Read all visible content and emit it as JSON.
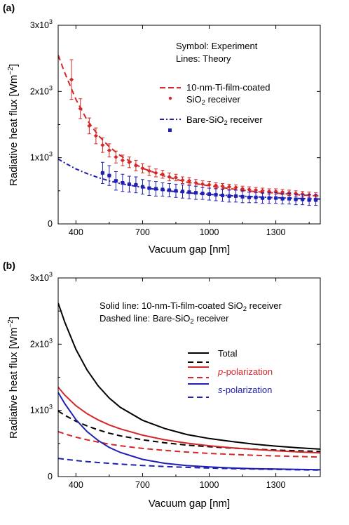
{
  "chart_data": [
    {
      "type": "line",
      "panel_label": "(a)",
      "xlabel": "Vacuum gap [nm]",
      "ylabel": "Radiative heat flux [Wm",
      "ylabel_sup": "−2",
      "ylabel_end": "]",
      "xlim": [
        320,
        1500
      ],
      "ylim": [
        0,
        3000
      ],
      "xticks": [
        400,
        700,
        1000,
        1300
      ],
      "yticks": [
        {
          "value": 0,
          "base": "0",
          "exp": ""
        },
        {
          "value": 1000,
          "base": "1x10",
          "exp": "3"
        },
        {
          "value": 2000,
          "base": "2x10",
          "exp": "3"
        },
        {
          "value": 3000,
          "base": "3x10",
          "exp": "3"
        }
      ],
      "notes": [
        "Symbol: Experiment",
        "Lines: Theory"
      ],
      "legend": [
        {
          "label_line1": "10-nm-Ti-film-coated",
          "label_line2_pre": "SiO",
          "label_line2_sub": "2",
          "label_line2_post": " receiver"
        },
        {
          "label_line1": "Bare-SiO",
          "label_line1_sub": "2",
          "label_line1_post": " receiver"
        }
      ],
      "colors": {
        "ti": "#d62728",
        "bare": "#1f1fb4"
      },
      "theory": [
        {
          "name": "10-nm-Ti-film-coated SiO2 receiver",
          "style": "dashed",
          "color": "#d62728",
          "x": [
            320,
            350,
            400,
            450,
            500,
            550,
            600,
            700,
            800,
            900,
            1000,
            1100,
            1200,
            1300,
            1400,
            1500
          ],
          "y": [
            2550,
            2280,
            1880,
            1570,
            1340,
            1165,
            1030,
            840,
            720,
            630,
            575,
            530,
            490,
            465,
            440,
            420
          ]
        },
        {
          "name": "Bare-SiO2 receiver",
          "style": "dashdot",
          "color": "#1f1fb4",
          "x": [
            320,
            350,
            400,
            450,
            500,
            550,
            600,
            700,
            800,
            900,
            1000,
            1100,
            1200,
            1300,
            1400,
            1500
          ],
          "y": [
            980,
            920,
            830,
            760,
            700,
            650,
            610,
            550,
            505,
            470,
            445,
            425,
            410,
            395,
            385,
            375
          ]
        }
      ],
      "experiment": [
        {
          "name": "10-nm-Ti-film-coated SiO2 receiver",
          "marker": "circle",
          "color": "#d62728",
          "x": [
            380,
            420,
            460,
            490,
            520,
            550,
            580,
            610,
            640,
            670,
            700,
            730,
            760,
            790,
            820,
            850,
            880,
            910,
            940,
            970,
            1000,
            1030,
            1060,
            1090,
            1120,
            1150,
            1180,
            1210,
            1240,
            1270,
            1300,
            1330,
            1360,
            1390,
            1420,
            1450,
            1480
          ],
          "y": [
            2180,
            1740,
            1480,
            1330,
            1190,
            1110,
            1010,
            960,
            930,
            880,
            840,
            800,
            770,
            750,
            710,
            700,
            660,
            650,
            620,
            600,
            590,
            580,
            570,
            560,
            550,
            530,
            520,
            510,
            500,
            490,
            490,
            480,
            470,
            460,
            450,
            440,
            430
          ],
          "err": [
            300,
            150,
            120,
            120,
            110,
            100,
            90,
            80,
            80,
            80,
            70,
            70,
            60,
            60,
            60,
            50,
            50,
            50,
            50,
            50,
            50,
            40,
            40,
            40,
            40,
            40,
            40,
            40,
            40,
            40,
            40,
            40,
            40,
            40,
            40,
            40,
            40
          ]
        },
        {
          "name": "Bare-SiO2 receiver",
          "marker": "square",
          "color": "#1f1fb4",
          "x": [
            520,
            550,
            580,
            610,
            640,
            670,
            700,
            730,
            760,
            790,
            820,
            850,
            880,
            910,
            940,
            970,
            1000,
            1030,
            1060,
            1090,
            1120,
            1150,
            1180,
            1210,
            1240,
            1270,
            1300,
            1330,
            1360,
            1390,
            1420,
            1450,
            1480
          ],
          "y": [
            770,
            730,
            650,
            620,
            600,
            590,
            560,
            540,
            530,
            520,
            510,
            500,
            490,
            480,
            470,
            460,
            450,
            440,
            430,
            420,
            420,
            410,
            400,
            400,
            390,
            390,
            390,
            380,
            380,
            370,
            370,
            360,
            360
          ],
          "err": [
            160,
            150,
            140,
            130,
            120,
            120,
            110,
            110,
            110,
            100,
            100,
            100,
            100,
            100,
            100,
            90,
            90,
            90,
            90,
            90,
            90,
            90,
            80,
            80,
            80,
            80,
            80,
            80,
            80,
            80,
            80,
            80,
            80
          ]
        }
      ]
    },
    {
      "type": "line",
      "panel_label": "(b)",
      "xlabel": "Vacuum gap [nm]",
      "ylabel": "Radiative heat flux [Wm",
      "ylabel_sup": "−2",
      "ylabel_end": "]",
      "xlim": [
        320,
        1500
      ],
      "ylim": [
        0,
        3000
      ],
      "xticks": [
        400,
        700,
        1000,
        1300
      ],
      "yticks": [
        {
          "value": 0,
          "base": "0",
          "exp": ""
        },
        {
          "value": 1000,
          "base": "1x10",
          "exp": "3"
        },
        {
          "value": 2000,
          "base": "2x10",
          "exp": "3"
        },
        {
          "value": 3000,
          "base": "3x10",
          "exp": "3"
        }
      ],
      "notes": [
        {
          "pre": "Solid line: 10-nm-Ti-film-coated SiO",
          "sub": "2",
          "post": " receiver"
        },
        {
          "pre": "Dashed line: Bare-SiO",
          "sub": "2",
          "post": " receiver"
        }
      ],
      "legend": [
        {
          "label": "Total",
          "color": "#000000",
          "italic_pre": ""
        },
        {
          "label": "-polarization",
          "color": "#d62728",
          "italic_pre": "p"
        },
        {
          "label": "-polarization",
          "color": "#1f1fb4",
          "italic_pre": "s"
        }
      ],
      "series": [
        {
          "name": "Total (Ti)",
          "style": "solid",
          "color": "#000000",
          "x": [
            320,
            350,
            400,
            450,
            500,
            550,
            600,
            700,
            800,
            900,
            1000,
            1100,
            1200,
            1300,
            1400,
            1500
          ],
          "y": [
            2620,
            2330,
            1920,
            1610,
            1370,
            1185,
            1045,
            850,
            725,
            635,
            575,
            530,
            490,
            460,
            435,
            415
          ]
        },
        {
          "name": "Total (Bare)",
          "style": "dashed",
          "color": "#000000",
          "x": [
            320,
            350,
            400,
            450,
            500,
            550,
            600,
            700,
            800,
            900,
            1000,
            1100,
            1200,
            1300,
            1400,
            1500
          ],
          "y": [
            990,
            925,
            835,
            765,
            705,
            655,
            615,
            555,
            510,
            475,
            450,
            430,
            415,
            400,
            390,
            380
          ]
        },
        {
          "name": "p-polarization (Ti)",
          "style": "solid",
          "color": "#d62728",
          "x": [
            320,
            350,
            400,
            450,
            500,
            550,
            600,
            700,
            800,
            900,
            1000,
            1100,
            1200,
            1300,
            1400,
            1500
          ],
          "y": [
            1350,
            1230,
            1070,
            950,
            855,
            780,
            720,
            625,
            555,
            505,
            465,
            435,
            410,
            390,
            372,
            358
          ]
        },
        {
          "name": "p-polarization (Bare)",
          "style": "dashed",
          "color": "#d62728",
          "x": [
            320,
            350,
            400,
            450,
            500,
            550,
            600,
            700,
            800,
            900,
            1000,
            1100,
            1200,
            1300,
            1400,
            1500
          ],
          "y": [
            680,
            645,
            595,
            555,
            520,
            490,
            465,
            425,
            395,
            370,
            350,
            335,
            322,
            312,
            303,
            295
          ]
        },
        {
          "name": "s-polarization (Ti)",
          "style": "solid",
          "color": "#1f1fb4",
          "x": [
            320,
            350,
            400,
            450,
            500,
            550,
            600,
            700,
            800,
            900,
            1000,
            1100,
            1200,
            1300,
            1400,
            1500
          ],
          "y": [
            1270,
            1100,
            860,
            680,
            545,
            440,
            365,
            260,
            200,
            165,
            145,
            130,
            120,
            113,
            108,
            104
          ]
        },
        {
          "name": "s-polarization (Bare)",
          "style": "dashed",
          "color": "#1f1fb4",
          "x": [
            320,
            350,
            400,
            450,
            500,
            550,
            600,
            700,
            800,
            900,
            1000,
            1100,
            1200,
            1300,
            1400,
            1500
          ],
          "y": [
            275,
            262,
            243,
            226,
            212,
            200,
            188,
            168,
            152,
            139,
            128,
            120,
            113,
            107,
            102,
            98
          ]
        }
      ]
    }
  ]
}
